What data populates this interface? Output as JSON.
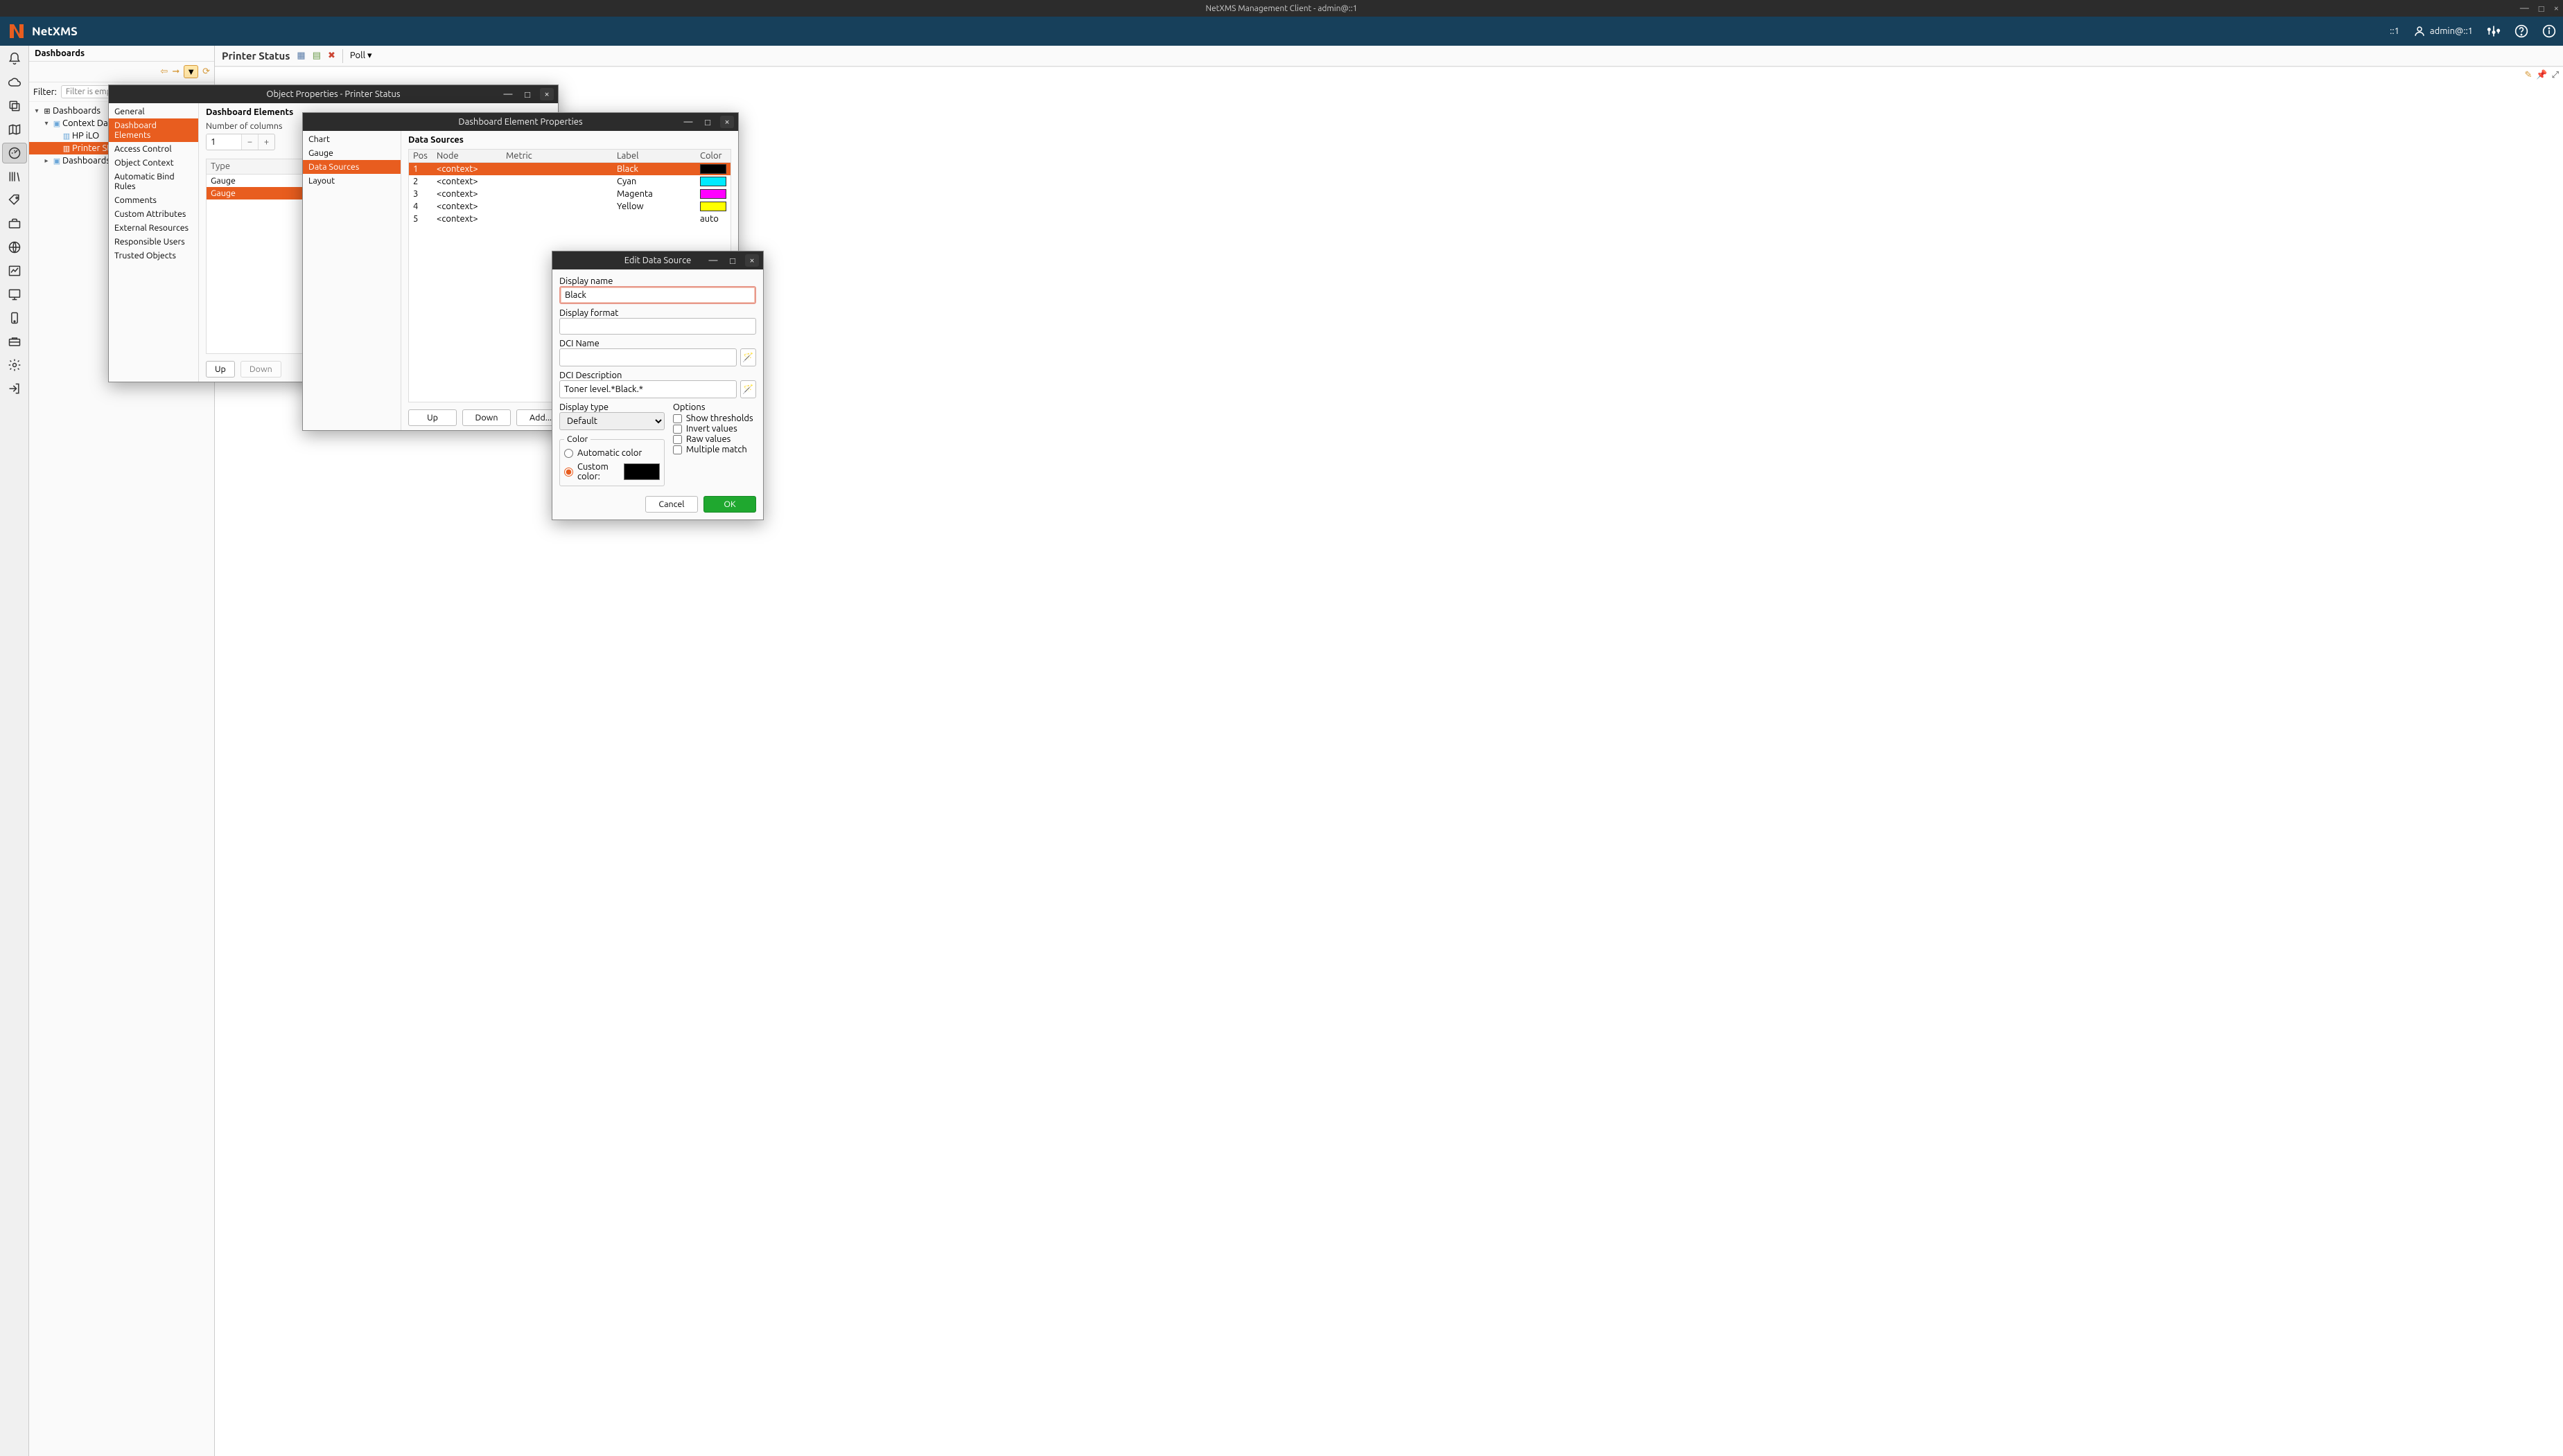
{
  "os_titlebar": {
    "title": "NetXMS Management Client - admin@::1"
  },
  "header": {
    "brand": "NetXMS",
    "server_label": "::1",
    "user_label": "admin@::1"
  },
  "dashboards_panel": {
    "title": "Dashboards",
    "filter_label": "Filter:",
    "filter_placeholder": "Filter is empty",
    "tree": {
      "root": "Dashboards",
      "items": [
        {
          "label": "Context Dashb",
          "children": [
            {
              "label": "HP iLO"
            },
            {
              "label": "Printer Stat",
              "selected": true
            }
          ]
        },
        {
          "label": "Dashboards"
        }
      ]
    }
  },
  "editor": {
    "title": "Printer Status",
    "poll_label": "Poll ▾"
  },
  "dialog_obj_props": {
    "title": "Object Properties - Printer Status",
    "nav": [
      "General",
      "Dashboard Elements",
      "Access Control",
      "Object Context",
      "Automatic Bind Rules",
      "Comments",
      "Custom Attributes",
      "External Resources",
      "Responsible Users",
      "Trusted Objects"
    ],
    "nav_selected": "Dashboard Elements",
    "heading": "Dashboard Elements",
    "num_cols_label": "Number of columns",
    "num_cols_value": "1",
    "type_header": "Type",
    "types": [
      "Gauge",
      "Gauge"
    ],
    "type_selected_index": 1,
    "up_label": "Up",
    "down_label": "Down"
  },
  "dialog_elem_props": {
    "title": "Dashboard Element Properties",
    "nav": [
      "Chart",
      "Gauge",
      "Data Sources",
      "Layout"
    ],
    "nav_selected": "Data Sources",
    "heading": "Data Sources",
    "columns": [
      "Pos",
      "Node",
      "Metric",
      "Label",
      "Color"
    ],
    "rows": [
      {
        "pos": "1",
        "node": "<context>",
        "metric": "",
        "label": "Black",
        "color": "#000000",
        "selected": true
      },
      {
        "pos": "2",
        "node": "<context>",
        "metric": "",
        "label": "Cyan",
        "color": "#00eaff"
      },
      {
        "pos": "3",
        "node": "<context>",
        "metric": "",
        "label": "Magenta",
        "color": "#ff00ff"
      },
      {
        "pos": "4",
        "node": "<context>",
        "metric": "",
        "label": "Yellow",
        "color": "#ffff00"
      },
      {
        "pos": "5",
        "node": "<context>",
        "metric": "",
        "label": "",
        "color": "auto"
      }
    ],
    "up_label": "Up",
    "down_label": "Down",
    "add_label": "Add..."
  },
  "dialog_edit_ds": {
    "title": "Edit Data Source",
    "display_name_label": "Display name",
    "display_name_value": "Black",
    "display_format_label": "Display format",
    "display_format_value": "",
    "dci_name_label": "DCI Name",
    "dci_name_value": "",
    "dci_desc_label": "DCI Description",
    "dci_desc_value": "Toner level.*Black.*",
    "display_type_label": "Display type",
    "display_type_value": "Default",
    "options_label": "Options",
    "options": [
      "Show thresholds",
      "Invert values",
      "Raw values",
      "Multiple match"
    ],
    "color_label": "Color",
    "auto_color_label": "Automatic color",
    "custom_color_label": "Custom color:",
    "custom_color_value": "#000000",
    "cancel_label": "Cancel",
    "ok_label": "OK"
  },
  "colors": {
    "accent": "#e85d1f",
    "header_bg": "#17405b",
    "ok_btn": "#1fa82f"
  }
}
